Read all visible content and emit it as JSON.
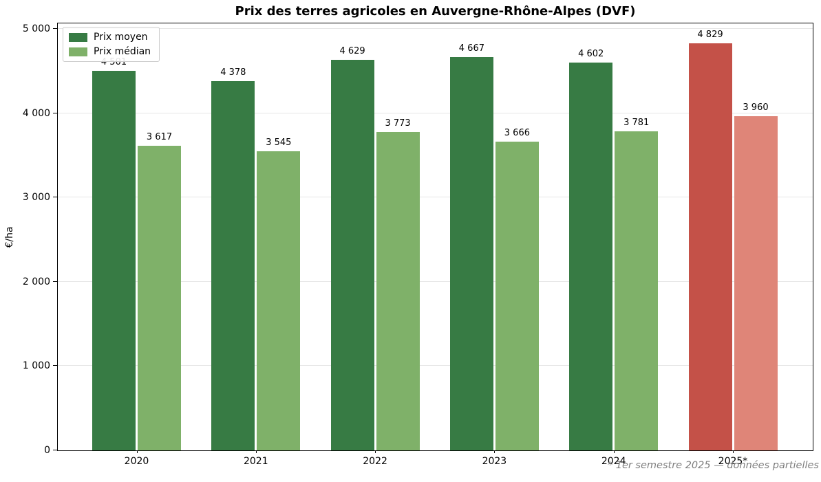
{
  "chart_data": {
    "type": "bar",
    "title": "Prix des terres agricoles en Auvergne-Rhône-Alpes (DVF)",
    "ylabel": "€/ha",
    "xlabel": "",
    "categories": [
      "2020",
      "2021",
      "2022",
      "2023",
      "2024",
      "2025*"
    ],
    "series": [
      {
        "name": "Prix moyen",
        "values": [
          4501,
          4378,
          4629,
          4667,
          4602,
          4829
        ],
        "color": "#377b44",
        "highlight_color": "#c45148"
      },
      {
        "name": "Prix médian",
        "values": [
          3617,
          3545,
          3773,
          3666,
          3781,
          3960
        ],
        "color": "#7fb169",
        "highlight_color": "#df8578"
      }
    ],
    "value_labels": {
      "prix_moyen": [
        "4 501",
        "4 378",
        "4 629",
        "4 667",
        "4 602",
        "4 829"
      ],
      "prix_median": [
        "3 617",
        "3 545",
        "3 773",
        "3 666",
        "3 781",
        "3 960"
      ]
    },
    "highlight_index": 5,
    "yticks": [
      0,
      1000,
      2000,
      3000,
      4000,
      5000
    ],
    "ytick_labels": [
      "0",
      "1 000",
      "2 000",
      "3 000",
      "4 000",
      "5 000"
    ],
    "ylim": [
      0,
      5065
    ],
    "grid": true,
    "gridline_color": "#e6e6e6",
    "legend_position": "upper-left",
    "legend": [
      "Prix moyen",
      "Prix médian"
    ],
    "footnote": "* 1er semestre 2025 — données partielles",
    "footnote_color": "#7f7f7f"
  }
}
